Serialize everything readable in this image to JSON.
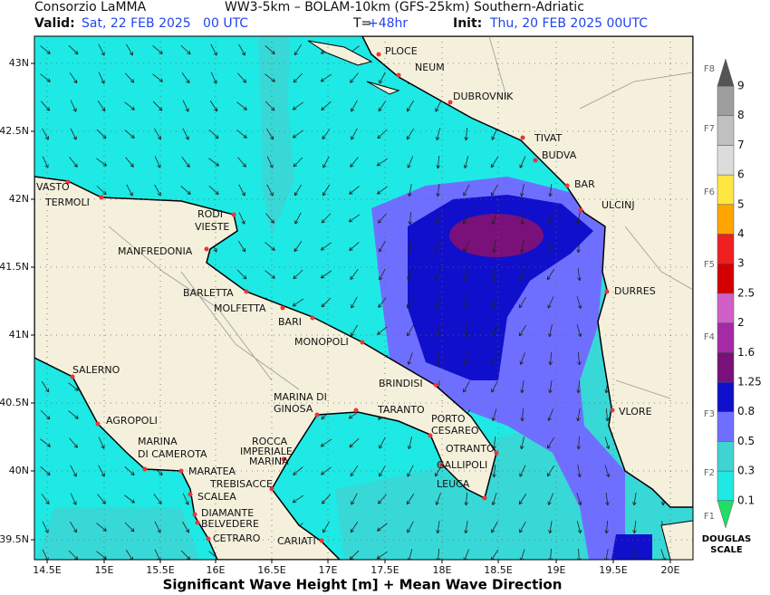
{
  "header": {
    "org": "Consorzio LaMMA",
    "model": "WW3-5km – BOLAM-10km (GFS-25km) Southern-Adriatic",
    "valid_label": "Valid:",
    "valid": "Sat, 22 FEB 2025   00 UTC",
    "step_label": "T=",
    "step": "+48hr",
    "init_label": "Init:",
    "init": "Thu, 20 FEB 2025 00UTC"
  },
  "map": {
    "lon_ticks": [
      "14.5E",
      "15E",
      "15.5E",
      "16E",
      "16.5E",
      "17E",
      "17.5E",
      "18E",
      "18.5E",
      "19E",
      "19.5E",
      "20E"
    ],
    "lat_ticks": [
      "43N",
      "42.5N",
      "42N",
      "41.5N",
      "41N",
      "40.5N",
      "40N",
      "39.5N"
    ],
    "cities": [
      "PLOCE",
      "NEUM",
      "DUBROVNIK",
      "TIVAT",
      "BUDVA",
      "BAR",
      "ULCINJ",
      "DURRES",
      "VLORE",
      "VASTO",
      "TERMOLI",
      "RODI",
      "VIESTE",
      "MANFREDONIA",
      "BARLETTA",
      "MOLFETTA",
      "BARI",
      "MONOPOLI",
      "BRINDISI",
      "MARINA DI",
      "GINOSA",
      "TARANTO",
      "PORTO",
      "CESAREO",
      "OTRANTO",
      "GALLIPOLI",
      "LEUCA",
      "SALERNO",
      "AGROPOLI",
      "MARINA",
      "DI CAMEROTA",
      "ROCCA",
      "IMPERIALE",
      "MARINA",
      "MARATEA",
      "TREBISACCE",
      "SCALEA",
      "DIAMANTE",
      "BELVEDERE",
      "CETRARO",
      "CARIATI"
    ],
    "xlabel": "Significant Wave Height [m] + Mean Wave Direction"
  },
  "colorbar": {
    "levels": [
      0.1,
      0.3,
      0.5,
      0.8,
      1.25,
      1.6,
      2,
      2.5,
      3,
      4,
      5,
      6,
      7,
      8,
      9
    ],
    "colors": [
      "#1ee9e4",
      "#3fd3d3",
      "#6f6fff",
      "#1010cc",
      "#7a107a",
      "#a52aa5",
      "#d060c8",
      "#d40000",
      "#ee2020",
      "#ffa500",
      "#ffe640",
      "#dcdcdc",
      "#c0c0c0",
      "#9e9e9e"
    ],
    "douglas": [
      "F1",
      "F2",
      "F3",
      "F4",
      "F5",
      "F6",
      "F7",
      "F8"
    ],
    "scale_label": [
      "DOUGLAS",
      "SCALE"
    ]
  }
}
